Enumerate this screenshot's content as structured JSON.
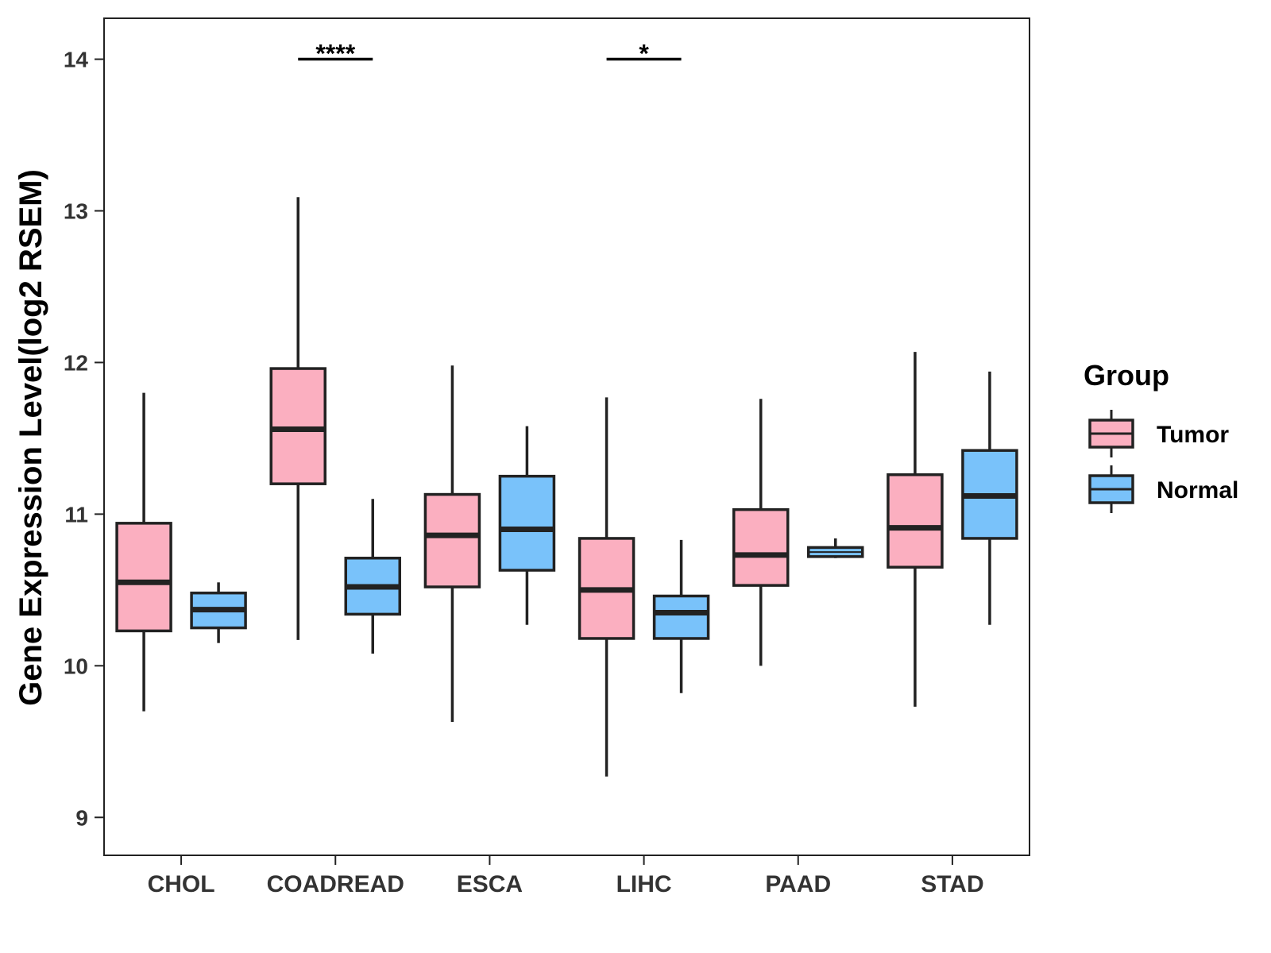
{
  "chart_data": {
    "type": "boxplot",
    "title": "",
    "xlabel": "",
    "ylabel": "Gene Expression Level(log2 RSEM)",
    "ylim": [
      8.75,
      14.27
    ],
    "yticks": [
      9,
      10,
      11,
      12,
      13,
      14
    ],
    "ytick_labels": [
      "9",
      "10",
      "11",
      "12",
      "13",
      "14"
    ],
    "grid": false,
    "categories": [
      "CHOL",
      "COADREAD",
      "ESCA",
      "LIHC",
      "PAAD",
      "STAD"
    ],
    "series": [
      {
        "name": "Tumor",
        "color": "#FBAFC0",
        "boxes": [
          {
            "whisker_low": 9.7,
            "q1": 10.23,
            "median": 10.55,
            "q3": 10.94,
            "whisker_high": 11.8
          },
          {
            "whisker_low": 10.17,
            "q1": 11.2,
            "median": 11.56,
            "q3": 11.96,
            "whisker_high": 13.09
          },
          {
            "whisker_low": 9.63,
            "q1": 10.52,
            "median": 10.86,
            "q3": 11.13,
            "whisker_high": 11.98
          },
          {
            "whisker_low": 9.27,
            "q1": 10.18,
            "median": 10.5,
            "q3": 10.84,
            "whisker_high": 11.77
          },
          {
            "whisker_low": 10.0,
            "q1": 10.53,
            "median": 10.73,
            "q3": 11.03,
            "whisker_high": 11.76
          },
          {
            "whisker_low": 9.73,
            "q1": 10.65,
            "median": 10.91,
            "q3": 11.26,
            "whisker_high": 12.07
          }
        ]
      },
      {
        "name": "Normal",
        "color": "#79C2FA",
        "boxes": [
          {
            "whisker_low": 10.15,
            "q1": 10.25,
            "median": 10.37,
            "q3": 10.48,
            "whisker_high": 10.55
          },
          {
            "whisker_low": 10.08,
            "q1": 10.34,
            "median": 10.52,
            "q3": 10.71,
            "whisker_high": 11.1
          },
          {
            "whisker_low": 10.27,
            "q1": 10.63,
            "median": 10.9,
            "q3": 11.25,
            "whisker_high": 11.58
          },
          {
            "whisker_low": 9.82,
            "q1": 10.18,
            "median": 10.35,
            "q3": 10.46,
            "whisker_high": 10.83
          },
          {
            "whisker_low": 10.71,
            "q1": 10.72,
            "median": 10.75,
            "q3": 10.78,
            "whisker_high": 10.84
          },
          {
            "whisker_low": 10.27,
            "q1": 10.84,
            "median": 11.12,
            "q3": 11.42,
            "whisker_high": 11.94
          }
        ]
      }
    ],
    "significance": [
      {
        "category": "COADREAD",
        "label": "****",
        "y": 14.0
      },
      {
        "category": "LIHC",
        "label": "*",
        "y": 14.0
      }
    ],
    "legend": {
      "title": "Group",
      "position": "right",
      "entries": [
        "Tumor",
        "Normal"
      ]
    },
    "colors": {
      "outline": "#222222",
      "axis": "#222222",
      "tick_text": "#333333"
    }
  }
}
